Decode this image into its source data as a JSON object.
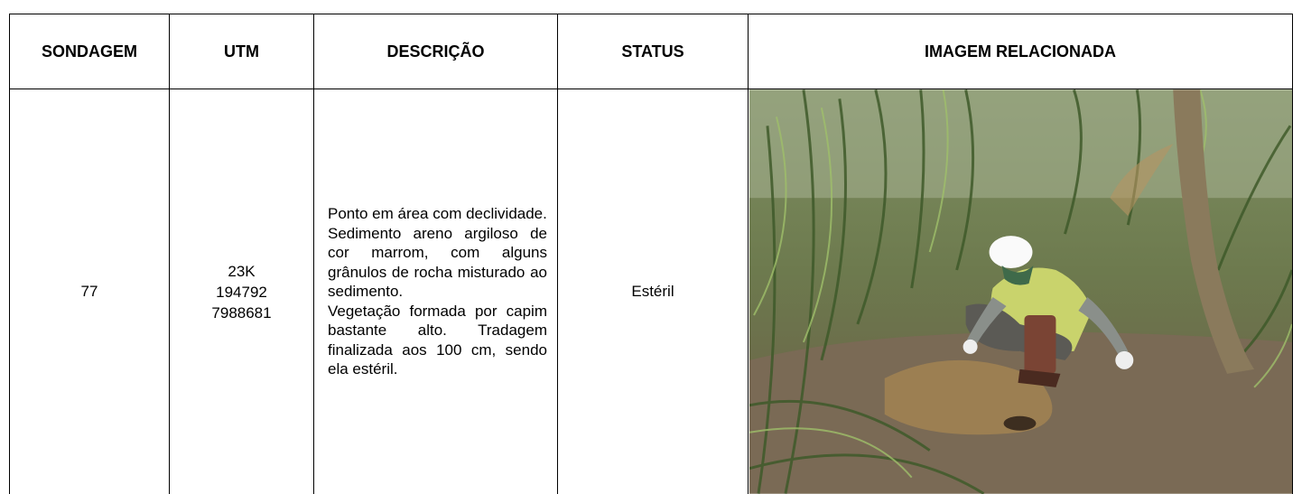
{
  "table": {
    "headers": [
      "SONDAGEM",
      "UTM",
      "DESCRIÇÃO",
      "STATUS",
      "IMAGEM RELACIONADA"
    ],
    "rows": [
      {
        "sondagem": "77",
        "utm": [
          "23K",
          "194792",
          "7988681"
        ],
        "descricao": [
          "Ponto em área com declividade.",
          "Sedimento areno argiloso de cor marrom, com alguns grânulos de rocha misturado ao sedimento.",
          "Vegetação formada por capim bastante alto. Tradagem finalizada aos 100 cm, sendo ela estéril."
        ],
        "status": "Estéril"
      }
    ]
  }
}
